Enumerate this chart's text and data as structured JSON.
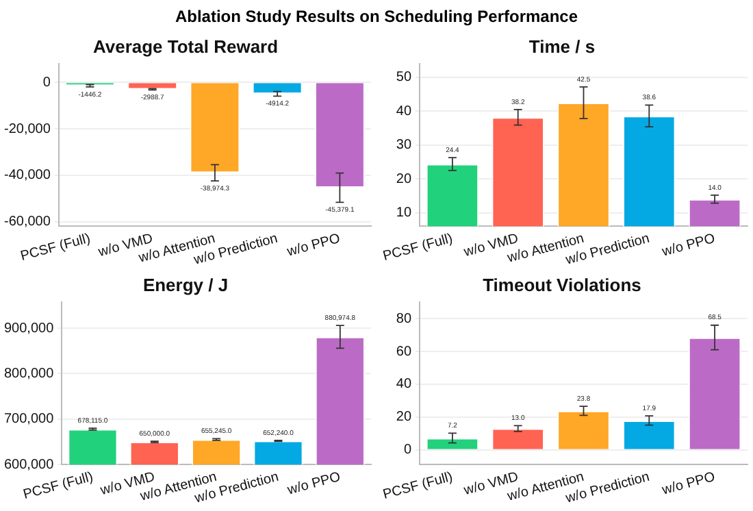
{
  "chart_data": [
    {
      "type": "bar",
      "title": "Average Total Reward",
      "annotations": [
        "Ablation Study Results on Scheduling Performance"
      ],
      "categories": [
        "PCSF (Full)",
        "w/o VMD",
        "w/o Attention",
        "w/o Prediction",
        "w/o PPO"
      ],
      "values": [
        -1446.2,
        -2988.7,
        -38974.3,
        -4914.2,
        -45379.1
      ],
      "colors": [
        "#22d17c",
        "#ff6352",
        "#ffa726",
        "#04a9e3",
        "#bb6bc6"
      ],
      "errors": [
        500,
        300,
        3500,
        1000,
        6300
      ],
      "value_labels": [
        "-1446.2",
        "-2988.7",
        "-38,974.3",
        "-4914.2",
        "-45,379.1"
      ],
      "ylim": [
        -62000,
        8000
      ],
      "yticks": [
        {
          "value": -60000,
          "label": "-60,000"
        },
        {
          "value": -40000,
          "label": "-40,000"
        },
        {
          "value": -20000,
          "label": "-20,000"
        },
        0
      ],
      "grid": "y"
    },
    {
      "type": "bar",
      "title": "Time / s",
      "categories": [
        "PCSF (Full)",
        "w/o VMD",
        "w/o Attention",
        "w/o Prediction",
        "w/o PPO"
      ],
      "values": [
        24.4,
        38.2,
        42.5,
        38.6,
        14.0
      ],
      "colors": [
        "#22d17c",
        "#ff6352",
        "#ffa726",
        "#04a9e3",
        "#bb6bc6"
      ],
      "errors": [
        1.9,
        2.3,
        4.7,
        3.2,
        1.2
      ],
      "value_labels": [
        "24.4",
        "38.2",
        "42.5",
        "38.6",
        "14.0"
      ],
      "ylim": [
        6,
        54
      ],
      "yticks": [
        10,
        20,
        30,
        40,
        50
      ],
      "grid": "y"
    },
    {
      "type": "bar",
      "title": "Energy / J",
      "categories": [
        "PCSF (Full)",
        "w/o VMD",
        "w/o Attention",
        "w/o Prediction",
        "w/o PPO"
      ],
      "values": [
        678115.0,
        650000.0,
        655245.0,
        652240.0,
        880974.8
      ],
      "colors": [
        "#22d17c",
        "#ff6352",
        "#ffa726",
        "#04a9e3",
        "#bb6bc6"
      ],
      "errors": [
        2000,
        1500,
        2000,
        1000,
        25000
      ],
      "value_labels": [
        "678,115.0",
        "650,000.0",
        "655,245.0",
        "652,240.0",
        "880,974.8"
      ],
      "ylim": [
        600000,
        957000
      ],
      "yticks": [
        {
          "value": 600000,
          "label": "600,000"
        },
        {
          "value": 700000,
          "label": "700,000"
        },
        {
          "value": 800000,
          "label": "800,000"
        },
        {
          "value": 900000,
          "label": "900,000"
        }
      ],
      "grid": "y"
    },
    {
      "type": "bar",
      "title": "Timeout Violations",
      "categories": [
        "PCSF (Full)",
        "w/o VMD",
        "w/o Attention",
        "w/o Prediction",
        "w/o PPO"
      ],
      "values": [
        7.2,
        13.0,
        23.8,
        17.9,
        68.5
      ],
      "colors": [
        "#22d17c",
        "#ff6352",
        "#ffa726",
        "#04a9e3",
        "#bb6bc6"
      ],
      "errors": [
        3,
        1.8,
        2.8,
        2.8,
        7.5
      ],
      "value_labels": [
        "7.2",
        "13.0",
        "23.8",
        "17.9",
        "68.5"
      ],
      "ylim": [
        -9,
        90
      ],
      "yticks": [
        0,
        20,
        40,
        60,
        80
      ],
      "grid": "y"
    }
  ]
}
